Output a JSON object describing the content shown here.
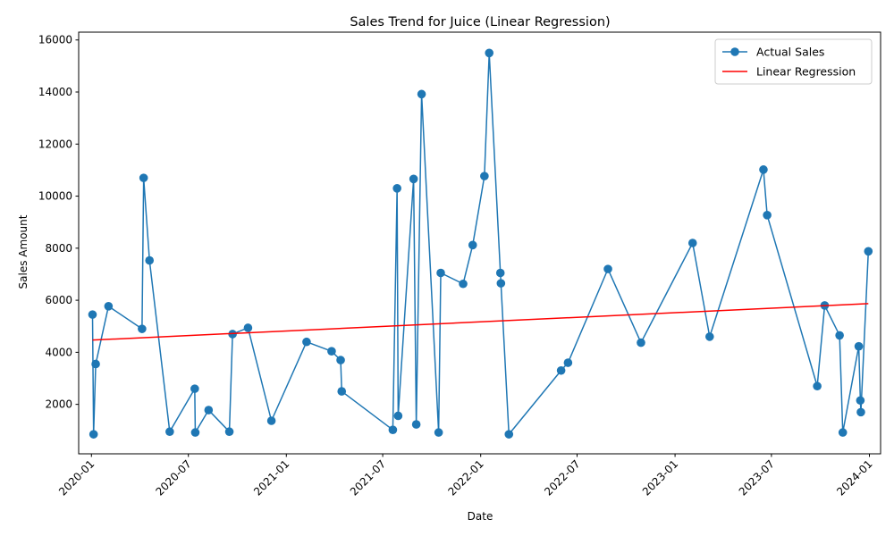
{
  "chart_data": {
    "type": "line",
    "title": "Sales Trend for Juice (Linear Regression)",
    "xlabel": "Date",
    "ylabel": "Sales Amount",
    "x_axis_type": "date",
    "xlim": [
      "2019-12-08",
      "2024-01-22"
    ],
    "ylim": [
      100,
      16300
    ],
    "x_ticks": [
      "2020-01-01",
      "2020-07-01",
      "2021-01-01",
      "2021-07-01",
      "2022-01-01",
      "2022-07-01",
      "2023-01-01",
      "2023-07-01",
      "2024-01-01"
    ],
    "x_tick_labels": [
      "2020-01",
      "2020-07",
      "2021-01",
      "2021-07",
      "2022-01",
      "2022-07",
      "2023-01",
      "2023-07",
      "2024-01"
    ],
    "y_ticks": [
      2000,
      4000,
      6000,
      8000,
      10000,
      12000,
      14000,
      16000
    ],
    "y_tick_labels": [
      "2000",
      "4000",
      "6000",
      "8000",
      "10000",
      "12000",
      "14000",
      "16000"
    ],
    "grid": false,
    "legend_position": "top-right",
    "series": [
      {
        "name": "Actual Sales",
        "kind": "line-markers",
        "color": "#1f77b4",
        "x": [
          "2020-01-03",
          "2020-01-05",
          "2020-01-09",
          "2020-02-02",
          "2020-04-05",
          "2020-04-08",
          "2020-04-19",
          "2020-05-27",
          "2020-07-13",
          "2020-07-14",
          "2020-08-08",
          "2020-09-16",
          "2020-09-22",
          "2020-10-21",
          "2020-12-04",
          "2021-02-08",
          "2021-03-27",
          "2021-04-13",
          "2021-04-15",
          "2021-07-20",
          "2021-07-28",
          "2021-07-30",
          "2021-08-28",
          "2021-09-02",
          "2021-09-12",
          "2021-10-14",
          "2021-10-18",
          "2021-11-29",
          "2021-12-17",
          "2022-01-08",
          "2022-01-17",
          "2022-02-07",
          "2022-02-08",
          "2022-02-23",
          "2022-06-01",
          "2022-06-14",
          "2022-08-28",
          "2022-10-29",
          "2023-02-03",
          "2023-03-07",
          "2023-06-16",
          "2023-06-23",
          "2023-09-25",
          "2023-10-09",
          "2023-11-06",
          "2023-11-12",
          "2023-12-12",
          "2023-12-15",
          "2023-12-16",
          "2023-12-30"
        ],
        "y": [
          5450,
          850,
          3550,
          5770,
          4900,
          10700,
          7530,
          950,
          2600,
          920,
          1780,
          950,
          4700,
          4940,
          1370,
          4400,
          4040,
          3700,
          2500,
          1020,
          10300,
          1560,
          10660,
          1230,
          13920,
          920,
          7050,
          6630,
          8120,
          10770,
          15500,
          7050,
          6650,
          850,
          3300,
          3600,
          7200,
          4370,
          8200,
          4600,
          11020,
          9270,
          2700,
          5800,
          4650,
          920,
          4230,
          2150,
          1700,
          7880
        ]
      },
      {
        "name": "Linear Regression",
        "kind": "line",
        "color": "#ff0000",
        "x": [
          "2020-01-03",
          "2023-12-30"
        ],
        "y": [
          4470,
          5870
        ]
      }
    ]
  }
}
